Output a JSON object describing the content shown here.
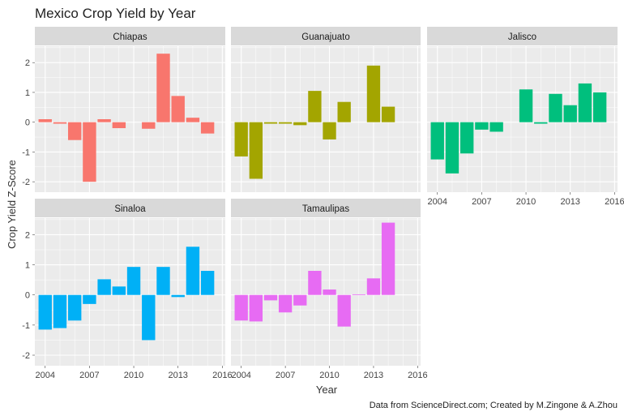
{
  "chart_data": {
    "type": "bar",
    "title": "Mexico Crop Yield by Year",
    "xlabel": "Year",
    "ylabel": "Crop Yield Z-Score",
    "caption": "Data from ScienceDirect.com; Created by M.Zingone & A.Zhou",
    "x": [
      2004,
      2005,
      2006,
      2007,
      2008,
      2009,
      2010,
      2011,
      2012,
      2013,
      2014,
      2015
    ],
    "x_ticks": [
      2004,
      2007,
      2010,
      2013,
      2016
    ],
    "x_tick_labels": [
      "2004",
      "2007",
      "2010",
      "2013",
      "2016"
    ],
    "xlim": [
      2003.3,
      2016.2
    ],
    "y_ticks": [
      -2,
      -1,
      0,
      1,
      2
    ],
    "y_tick_labels": [
      "-2",
      "-1",
      "0",
      "1",
      "2"
    ],
    "ylim": [
      -2.35,
      2.55
    ],
    "grid": true,
    "legend": "none",
    "facets": [
      {
        "name": "Chiapas",
        "color": "#F8766D",
        "values": [
          0.1,
          -0.05,
          -0.6,
          -2.0,
          0.1,
          -0.2,
          null,
          -0.22,
          2.3,
          0.88,
          0.15,
          -0.38
        ]
      },
      {
        "name": "Guanajuato",
        "color": "#A3A500",
        "values": [
          -1.15,
          -1.9,
          -0.05,
          -0.05,
          -0.1,
          1.05,
          -0.58,
          0.68,
          null,
          1.9,
          0.52,
          null
        ]
      },
      {
        "name": "Jalisco",
        "color": "#00BF7D",
        "values": [
          -1.25,
          -1.72,
          -1.05,
          -0.25,
          -0.32,
          null,
          1.1,
          -0.05,
          0.95,
          0.57,
          1.3,
          1.0
        ]
      },
      {
        "name": "Sinaloa",
        "color": "#00B0F6",
        "values": [
          -1.15,
          -1.1,
          -0.85,
          -0.3,
          0.52,
          0.28,
          0.93,
          -1.5,
          0.93,
          -0.07,
          1.6,
          0.8
        ]
      },
      {
        "name": "Tamaulipas",
        "color": "#E76BF3",
        "values": [
          -0.85,
          -0.88,
          -0.18,
          -0.58,
          -0.35,
          0.8,
          0.18,
          -1.05,
          0.02,
          0.55,
          2.4,
          null
        ]
      }
    ]
  }
}
